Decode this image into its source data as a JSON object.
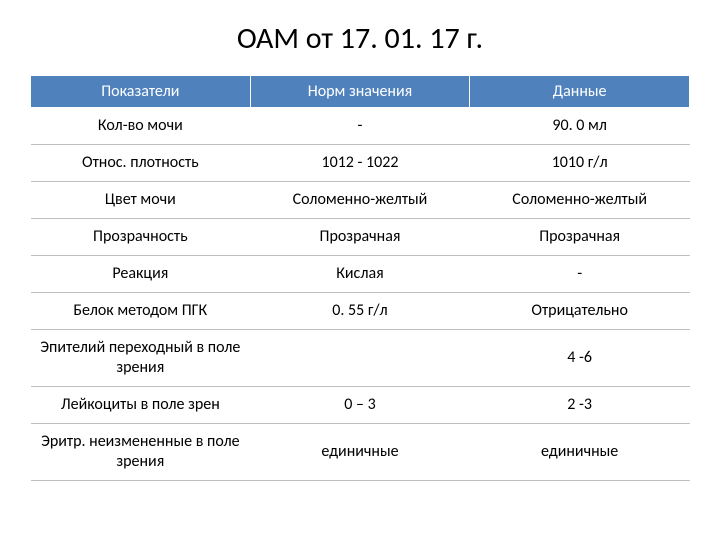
{
  "title": "ОАМ от 17. 01. 17 г.",
  "table": {
    "header_bg": "#4f81bd",
    "header_color": "#ffffff",
    "border_color": "#bfbfbf",
    "font_size": 16,
    "columns": [
      "Показатели",
      "Норм значения",
      "Данные"
    ],
    "rows": [
      [
        "Кол-во мочи",
        "-",
        "90. 0 мл"
      ],
      [
        "Относ. плотность",
        "1012 - 1022",
        "1010 г/л"
      ],
      [
        "Цвет мочи",
        "Соломенно-желтый",
        "Соломенно-желтый"
      ],
      [
        "Прозрачность",
        "Прозрачная",
        "Прозрачная"
      ],
      [
        "Реакция",
        "Кислая",
        "-"
      ],
      [
        "Белок методом ПГК",
        "0. 55 г/л",
        "Отрицательно"
      ],
      [
        "Эпителий переходный в поле зрения",
        "",
        "4 -6"
      ],
      [
        "Лейкоциты в поле зрен",
        "0 – 3",
        "2 -3"
      ],
      [
        "Эритр. неизмененные в поле зрения",
        "единичные",
        "единичные"
      ]
    ]
  }
}
